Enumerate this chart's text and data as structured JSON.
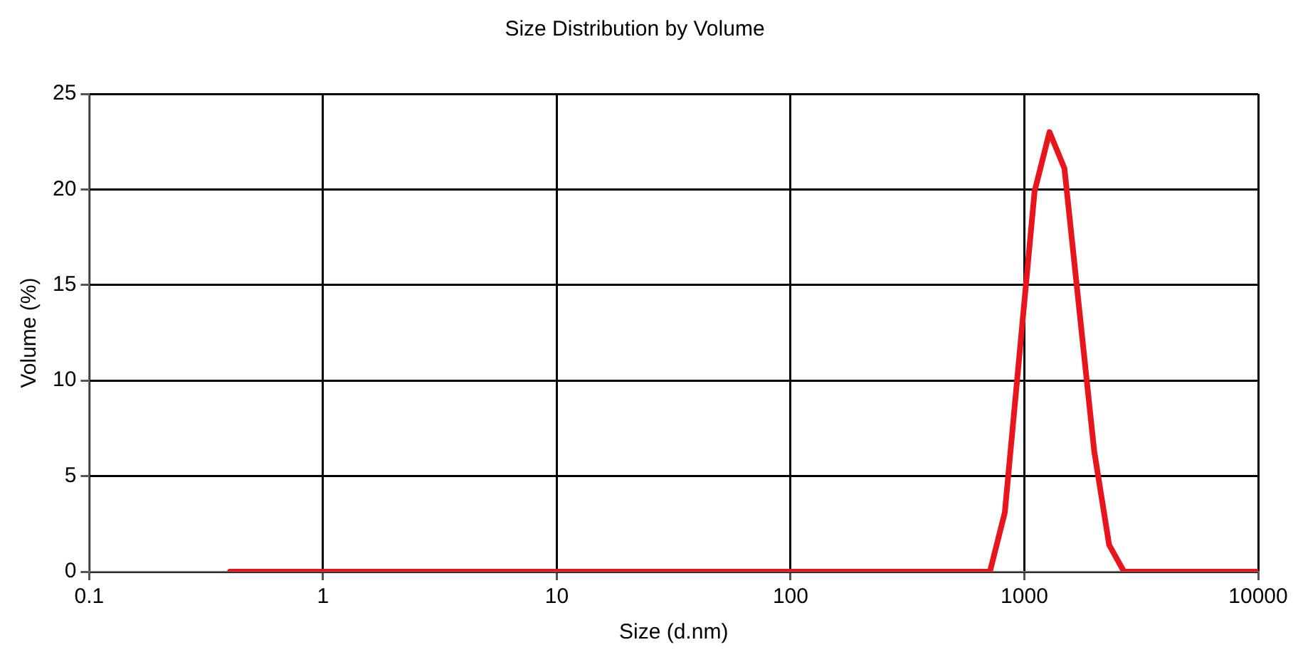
{
  "chart_data": {
    "type": "line",
    "title": "Size Distribution by Volume",
    "xlabel": "Size (d.nm)",
    "ylabel": "Volume (%)",
    "log": "x",
    "grid": true,
    "legend": false,
    "marker": "none",
    "line_style": "solid",
    "xlim": [
      0.1,
      10000
    ],
    "xticks": [
      0.1,
      1,
      10,
      100,
      1000,
      10000
    ],
    "ylim": [
      0,
      25
    ],
    "yticks": [
      0,
      5,
      10,
      15,
      20,
      25
    ],
    "series": [
      {
        "color": "#e8161c",
        "x": [
          0.4,
          1,
          10,
          100,
          712.4,
          825,
          955.4,
          1106,
          1281,
          1484,
          1718,
          1990,
          2305,
          2669,
          3091,
          10000
        ],
        "values": [
          0,
          0,
          0,
          0,
          0,
          3.1,
          11.5,
          19.9,
          23,
          21.1,
          13.7,
          6.3,
          1.4,
          0,
          0,
          0
        ]
      }
    ]
  }
}
